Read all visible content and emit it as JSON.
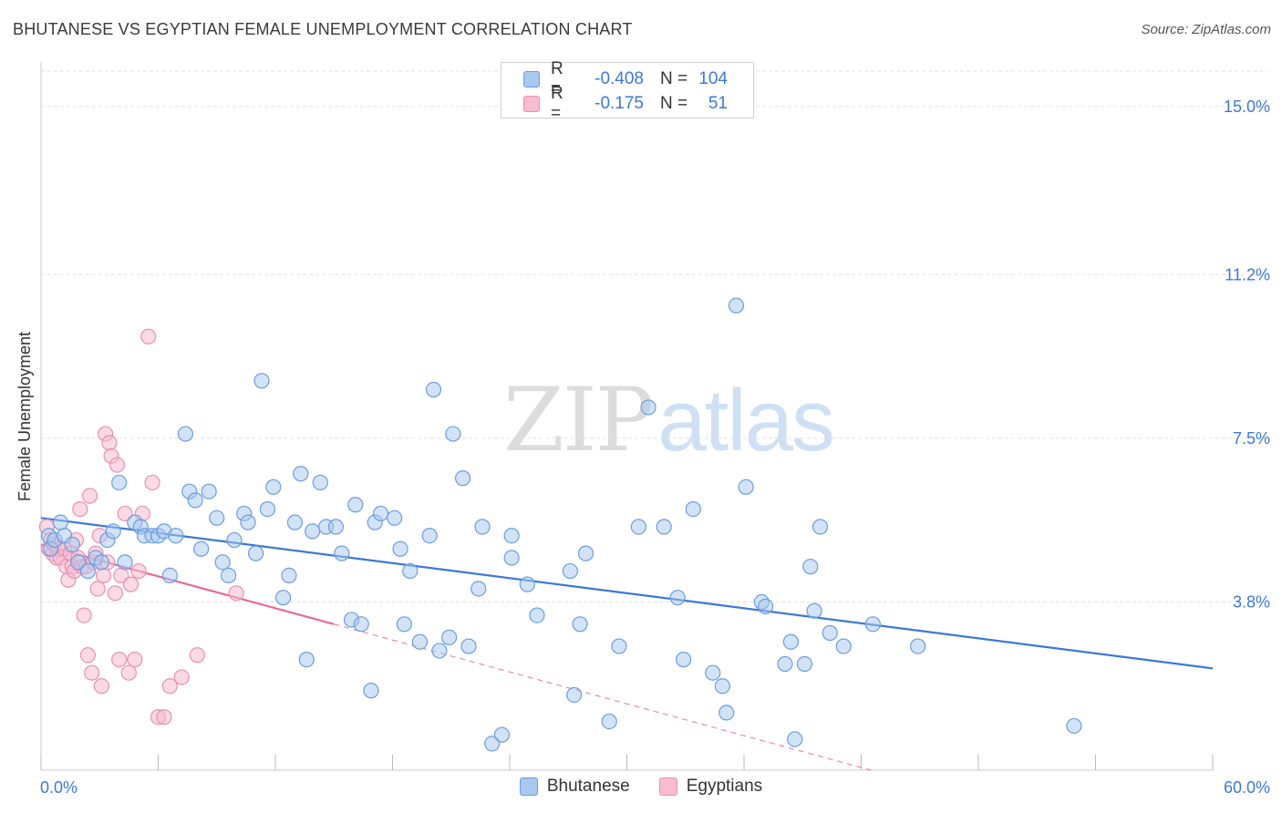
{
  "title": "BHUTANESE VS EGYPTIAN FEMALE UNEMPLOYMENT CORRELATION CHART",
  "source": "Source: ZipAtlas.com",
  "watermark": {
    "part1": "ZIP",
    "part2": "atlas"
  },
  "legend": {
    "rows": [
      {
        "r_label": "R =",
        "r_value": "-0.408",
        "n_label": "N =",
        "n_value": "104"
      },
      {
        "r_label": "R =",
        "r_value": "-0.175",
        "n_label": "N =",
        "n_value": "51"
      }
    ]
  },
  "colors": {
    "blue_fill": "#a8c8f0",
    "blue_stroke": "#6a9de0",
    "blue_line": "#3c78d8",
    "pink_fill": "#f8bcd0",
    "pink_stroke": "#e890b0",
    "pink_line": "#e8699a",
    "grid": "#e2e2e2",
    "tick_label": "#3c78d8"
  },
  "chart_data": {
    "type": "scatter",
    "title": "BHUTANESE VS EGYPTIAN FEMALE UNEMPLOYMENT CORRELATION CHART",
    "xlabel": "",
    "ylabel": "Female Unemployment",
    "xlim": [
      0,
      60
    ],
    "ylim": [
      0,
      15.8
    ],
    "x_tick_labels": [
      "0.0%",
      "60.0%"
    ],
    "y_ticks": [
      3.8,
      7.5,
      11.2,
      15.0
    ],
    "y_tick_labels": [
      "3.8%",
      "7.5%",
      "11.2%",
      "15.0%"
    ],
    "grid": true,
    "legend_position": "bottom-center",
    "series": [
      {
        "name": "Bhutanese",
        "r": -0.408,
        "n": 104,
        "trend": {
          "x0": 0,
          "y0": 5.7,
          "x1": 60,
          "y1": 2.3
        },
        "points": [
          [
            0.4,
            5.3
          ],
          [
            0.5,
            5.0
          ],
          [
            0.7,
            5.2
          ],
          [
            1.0,
            5.6
          ],
          [
            1.2,
            5.3
          ],
          [
            1.6,
            5.1
          ],
          [
            1.9,
            4.7
          ],
          [
            2.4,
            4.5
          ],
          [
            2.8,
            4.8
          ],
          [
            3.1,
            4.7
          ],
          [
            3.4,
            5.2
          ],
          [
            3.7,
            5.4
          ],
          [
            4.0,
            6.5
          ],
          [
            4.3,
            4.7
          ],
          [
            4.8,
            5.6
          ],
          [
            5.1,
            5.5
          ],
          [
            5.3,
            5.3
          ],
          [
            5.7,
            5.3
          ],
          [
            6.0,
            5.3
          ],
          [
            6.3,
            5.4
          ],
          [
            6.6,
            4.4
          ],
          [
            6.9,
            5.3
          ],
          [
            7.4,
            7.6
          ],
          [
            7.6,
            6.3
          ],
          [
            7.9,
            6.1
          ],
          [
            8.2,
            5.0
          ],
          [
            8.6,
            6.3
          ],
          [
            9.0,
            5.7
          ],
          [
            9.3,
            4.7
          ],
          [
            9.6,
            4.4
          ],
          [
            9.9,
            5.2
          ],
          [
            10.4,
            5.8
          ],
          [
            10.6,
            5.6
          ],
          [
            11.0,
            4.9
          ],
          [
            11.3,
            8.8
          ],
          [
            11.6,
            5.9
          ],
          [
            11.9,
            6.4
          ],
          [
            12.4,
            3.9
          ],
          [
            12.7,
            4.4
          ],
          [
            13.0,
            5.6
          ],
          [
            13.3,
            6.7
          ],
          [
            13.6,
            2.5
          ],
          [
            13.9,
            5.4
          ],
          [
            14.3,
            6.5
          ],
          [
            14.6,
            5.5
          ],
          [
            15.1,
            5.5
          ],
          [
            15.4,
            4.9
          ],
          [
            15.9,
            3.4
          ],
          [
            16.1,
            6.0
          ],
          [
            16.4,
            3.3
          ],
          [
            16.9,
            1.8
          ],
          [
            17.1,
            5.6
          ],
          [
            17.4,
            5.8
          ],
          [
            18.1,
            5.7
          ],
          [
            18.4,
            5.0
          ],
          [
            18.6,
            3.3
          ],
          [
            18.9,
            4.5
          ],
          [
            19.4,
            2.9
          ],
          [
            19.9,
            5.3
          ],
          [
            20.1,
            8.6
          ],
          [
            20.4,
            2.7
          ],
          [
            20.9,
            3.0
          ],
          [
            21.1,
            7.6
          ],
          [
            21.6,
            6.6
          ],
          [
            21.9,
            2.8
          ],
          [
            22.4,
            4.1
          ],
          [
            22.6,
            5.5
          ],
          [
            23.1,
            0.6
          ],
          [
            23.6,
            0.8
          ],
          [
            24.1,
            5.3
          ],
          [
            24.1,
            4.8
          ],
          [
            24.9,
            4.2
          ],
          [
            25.4,
            3.5
          ],
          [
            27.1,
            4.5
          ],
          [
            27.3,
            1.7
          ],
          [
            27.6,
            3.3
          ],
          [
            27.9,
            4.9
          ],
          [
            29.1,
            1.1
          ],
          [
            29.6,
            2.8
          ],
          [
            30.6,
            5.5
          ],
          [
            31.1,
            8.2
          ],
          [
            31.9,
            5.5
          ],
          [
            32.6,
            3.9
          ],
          [
            32.9,
            2.5
          ],
          [
            33.4,
            5.9
          ],
          [
            34.4,
            2.2
          ],
          [
            34.9,
            1.9
          ],
          [
            35.1,
            1.3
          ],
          [
            35.6,
            10.5
          ],
          [
            36.1,
            6.4
          ],
          [
            36.9,
            3.8
          ],
          [
            37.1,
            3.7
          ],
          [
            38.1,
            2.4
          ],
          [
            38.4,
            2.9
          ],
          [
            38.6,
            0.7
          ],
          [
            39.1,
            2.4
          ],
          [
            39.4,
            4.6
          ],
          [
            39.6,
            3.6
          ],
          [
            39.9,
            5.5
          ],
          [
            40.4,
            3.1
          ],
          [
            41.1,
            2.8
          ],
          [
            42.6,
            3.3
          ],
          [
            44.9,
            2.8
          ],
          [
            52.9,
            1.0
          ]
        ]
      },
      {
        "name": "Egyptians",
        "r": -0.175,
        "n": 51,
        "trend_solid": {
          "x0": 0,
          "y0": 5.1,
          "x1": 15,
          "y1": 3.3
        },
        "trend_dashed": {
          "x0": 15,
          "y0": 3.3,
          "x1": 60,
          "y1": -2.1
        },
        "points": [
          [
            0.3,
            5.5
          ],
          [
            0.4,
            5.0
          ],
          [
            0.5,
            5.2
          ],
          [
            0.6,
            4.9
          ],
          [
            0.7,
            5.1
          ],
          [
            0.8,
            4.8
          ],
          [
            0.9,
            5.0
          ],
          [
            1.0,
            4.8
          ],
          [
            1.2,
            5.0
          ],
          [
            1.3,
            4.6
          ],
          [
            1.4,
            4.3
          ],
          [
            1.5,
            4.9
          ],
          [
            1.6,
            4.6
          ],
          [
            1.7,
            4.5
          ],
          [
            1.8,
            5.2
          ],
          [
            1.9,
            4.8
          ],
          [
            2.0,
            5.9
          ],
          [
            2.1,
            4.6
          ],
          [
            2.2,
            3.5
          ],
          [
            2.3,
            4.6
          ],
          [
            2.4,
            2.6
          ],
          [
            2.5,
            6.2
          ],
          [
            2.6,
            2.2
          ],
          [
            2.7,
            4.7
          ],
          [
            2.8,
            4.9
          ],
          [
            2.9,
            4.1
          ],
          [
            3.0,
            5.3
          ],
          [
            3.1,
            1.9
          ],
          [
            3.2,
            4.4
          ],
          [
            3.3,
            7.6
          ],
          [
            3.4,
            4.7
          ],
          [
            3.5,
            7.4
          ],
          [
            3.6,
            7.1
          ],
          [
            3.8,
            4.0
          ],
          [
            3.9,
            6.9
          ],
          [
            4.0,
            2.5
          ],
          [
            4.1,
            4.4
          ],
          [
            4.3,
            5.8
          ],
          [
            4.5,
            2.2
          ],
          [
            4.6,
            4.2
          ],
          [
            4.8,
            2.5
          ],
          [
            5.0,
            4.5
          ],
          [
            5.2,
            5.8
          ],
          [
            5.5,
            9.8
          ],
          [
            5.7,
            6.5
          ],
          [
            6.0,
            1.2
          ],
          [
            6.3,
            1.2
          ],
          [
            6.6,
            1.9
          ],
          [
            7.2,
            2.1
          ],
          [
            8.0,
            2.6
          ],
          [
            10.0,
            4.0
          ]
        ]
      }
    ]
  }
}
